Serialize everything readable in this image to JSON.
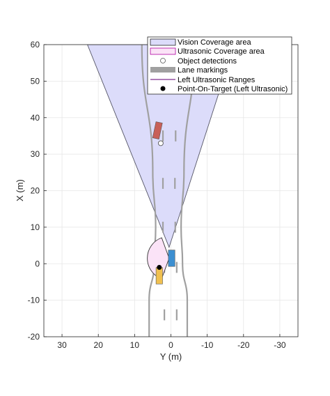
{
  "chart_data": {
    "type": "scatter",
    "xlabel": "Y (m)",
    "ylabel": "X (m)",
    "xlim": [
      35,
      -35
    ],
    "ylim": [
      -20,
      60
    ],
    "x_ticks": [
      "30",
      "20",
      "10",
      "0",
      "-10",
      "-20",
      "-30"
    ],
    "y_ticks": [
      "60",
      "50",
      "40",
      "30",
      "20",
      "10",
      "0",
      "-10",
      "-20"
    ],
    "grid": true,
    "legend_position": "top-right",
    "legend": [
      "Vision Coverage area",
      "Ultrasonic Coverage area",
      "Object detections",
      "Lane markings",
      "Left Ultrasonic Ranges",
      "Point-On-Target (Left Ultrasonic)"
    ],
    "colors": {
      "vision_fill": "#dcdcfa",
      "ultrasonic_fill": "#fbe3f7",
      "lane": "#a0a0a0",
      "range": "#7e2f8e",
      "ego": "#3c8fd1",
      "target_vehicle": "#c86058",
      "parked_vehicle": "#f0c050"
    },
    "vision_coverage": [
      [
        0.5,
        4.5
      ],
      [
        23,
        60
      ],
      [
        -17.5,
        60
      ]
    ],
    "ultrasonic_coverage": {
      "apex": [
        0.5,
        1.5
      ],
      "range_m": 6,
      "half_angle_deg": 70,
      "direction_deg": 90
    },
    "object_detections": [
      {
        "y": 2.8,
        "x": 33
      }
    ],
    "point_on_target": {
      "y": 3.2,
      "x": -1
    },
    "lane_boundaries": [
      {
        "y": [
          6,
          6,
          4.6,
          4.2,
          5,
          8
        ],
        "x": [
          -20,
          -10,
          0,
          10,
          25,
          60
        ]
      },
      {
        "y": [
          -4.5,
          -4.5,
          -3.2,
          -2.8,
          -3.6,
          -6.5
        ],
        "x": [
          -20,
          -10,
          0,
          10,
          25,
          60
        ]
      }
    ],
    "lane_dashes": [
      {
        "y": [
          1.8,
          1.8,
          2.2,
          2.2,
          2.2,
          2.3
        ],
        "x": [
          -14,
          -1,
          10,
          22,
          35,
          48
        ]
      },
      {
        "y": [
          -1.6,
          -1.6,
          -1.2,
          -1.1,
          -1.3,
          -1.7
        ],
        "x": [
          -14,
          -1,
          10,
          22,
          35,
          48
        ]
      }
    ],
    "vehicles": [
      {
        "role": "ego",
        "y": -0.2,
        "x": 1.5,
        "length": 4.5,
        "width": 1.8,
        "heading_deg": 0
      },
      {
        "role": "target",
        "y": 3.7,
        "x": 36.5,
        "length": 4.5,
        "width": 1.8,
        "heading_deg": 12
      },
      {
        "role": "parked",
        "y": 3.2,
        "x": -3.3,
        "length": 4.5,
        "width": 1.8,
        "heading_deg": 0
      }
    ]
  }
}
